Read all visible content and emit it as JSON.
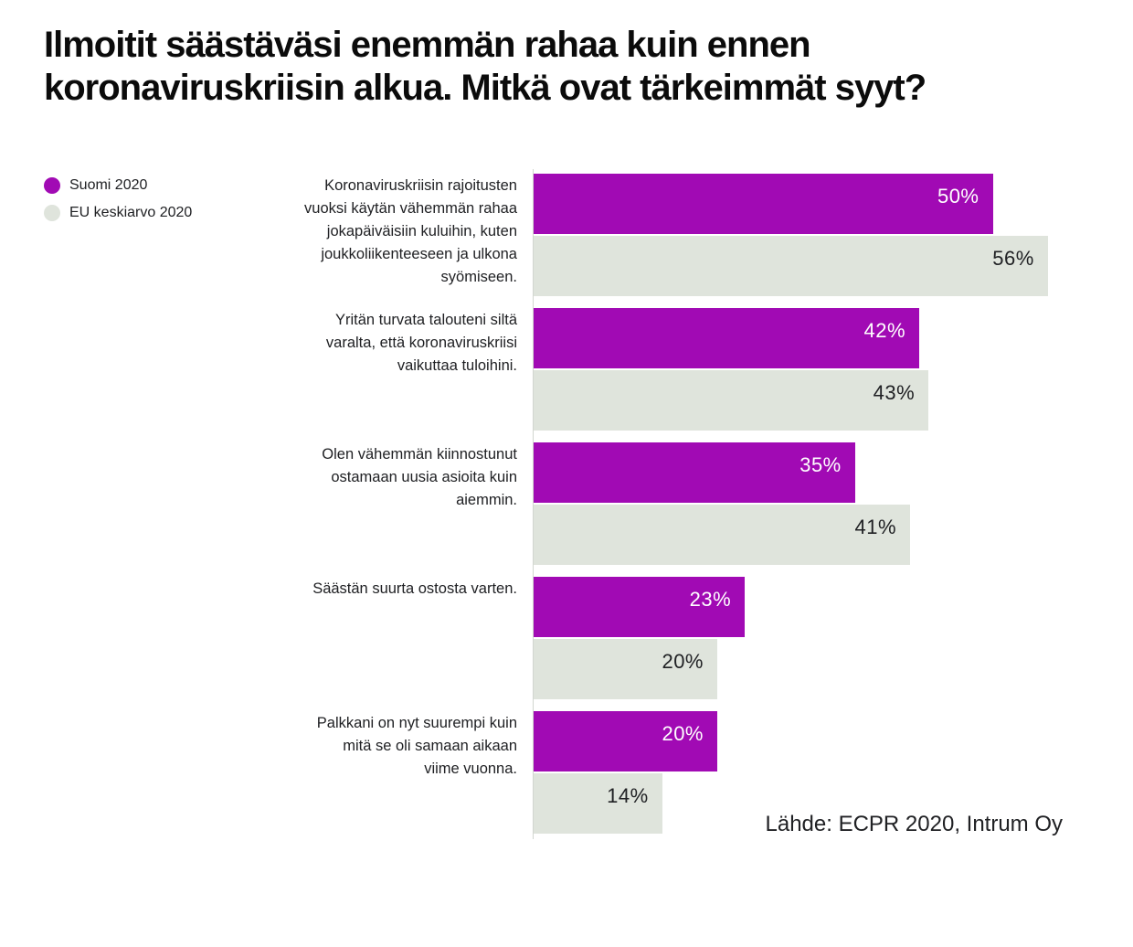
{
  "title_lines": [
    "Ilmoitit säästäväsi enemmän rahaa kuin ennen",
    "koronaviruskriisin alkua. Mitkä ovat tärkeimmät syyt?"
  ],
  "legend": {
    "items": [
      {
        "label": "Suomi 2020",
        "color": "#a10ab4"
      },
      {
        "label": "EU keskiarvo 2020",
        "color": "#dfe4dc"
      }
    ]
  },
  "source": "Lähde: ECPR 2020, Intrum Oy",
  "colors": {
    "suomi_bar": "#a10ab4",
    "eu_bar": "#dfe4dc",
    "suomi_value_text": "#ffffff",
    "eu_value_text": "#202124",
    "axis_line": "#d2d6d0",
    "text_dark": "#202124"
  },
  "chart_data": {
    "type": "bar",
    "orientation": "horizontal",
    "title": "Ilmoitit säästäväsi enemmän rahaa kuin ennen koronaviruskriisin alkua. Mitkä ovat tärkeimmät syyt?",
    "value_suffix": "%",
    "xlim": [
      0,
      56
    ],
    "grid": false,
    "legend_position": "top-left",
    "categories": [
      "Koronaviruskriisin rajoitusten vuoksi käytän vähemmän rahaa jokapäiväisiin kuluihin, kuten joukkoliikenteeseen ja ulkona syömiseen.",
      "Yritän turvata talouteni siltä varalta, että koronaviruskriisi vaikuttaa tuloihini.",
      "Olen vähemmän kiinnostunut ostamaan uusia asioita kuin aiemmin.",
      "Säästän suurta ostosta varten.",
      "Palkkani on nyt suurempi kuin mitä se oli samaan aikaan viime vuonna."
    ],
    "category_lines": [
      [
        "Koronaviruskriisin rajoitusten",
        "vuoksi käytän vähemmän rahaa",
        "jokapäiväisiin kuluihin, kuten",
        "joukkoliikenteeseen ja ulkona",
        "syömiseen."
      ],
      [
        "Yritän turvata talouteni siltä",
        "varalta, että koronaviruskriisi",
        "vaikuttaa tuloihini."
      ],
      [
        "Olen vähemmän kiinnostunut",
        "ostamaan uusia asioita kuin",
        "aiemmin."
      ],
      [
        "Säästän suurta ostosta varten."
      ],
      [
        "Palkkani on nyt suurempi kuin",
        "mitä se oli samaan aikaan",
        "viime vuonna."
      ]
    ],
    "series": [
      {
        "name": "Suomi 2020",
        "color": "#a10ab4",
        "label_color": "#ffffff",
        "values": [
          50,
          42,
          35,
          23,
          20
        ]
      },
      {
        "name": "EU keskiarvo 2020",
        "color": "#dfe4dc",
        "label_color": "#202124",
        "values": [
          56,
          43,
          41,
          20,
          14
        ]
      }
    ]
  }
}
